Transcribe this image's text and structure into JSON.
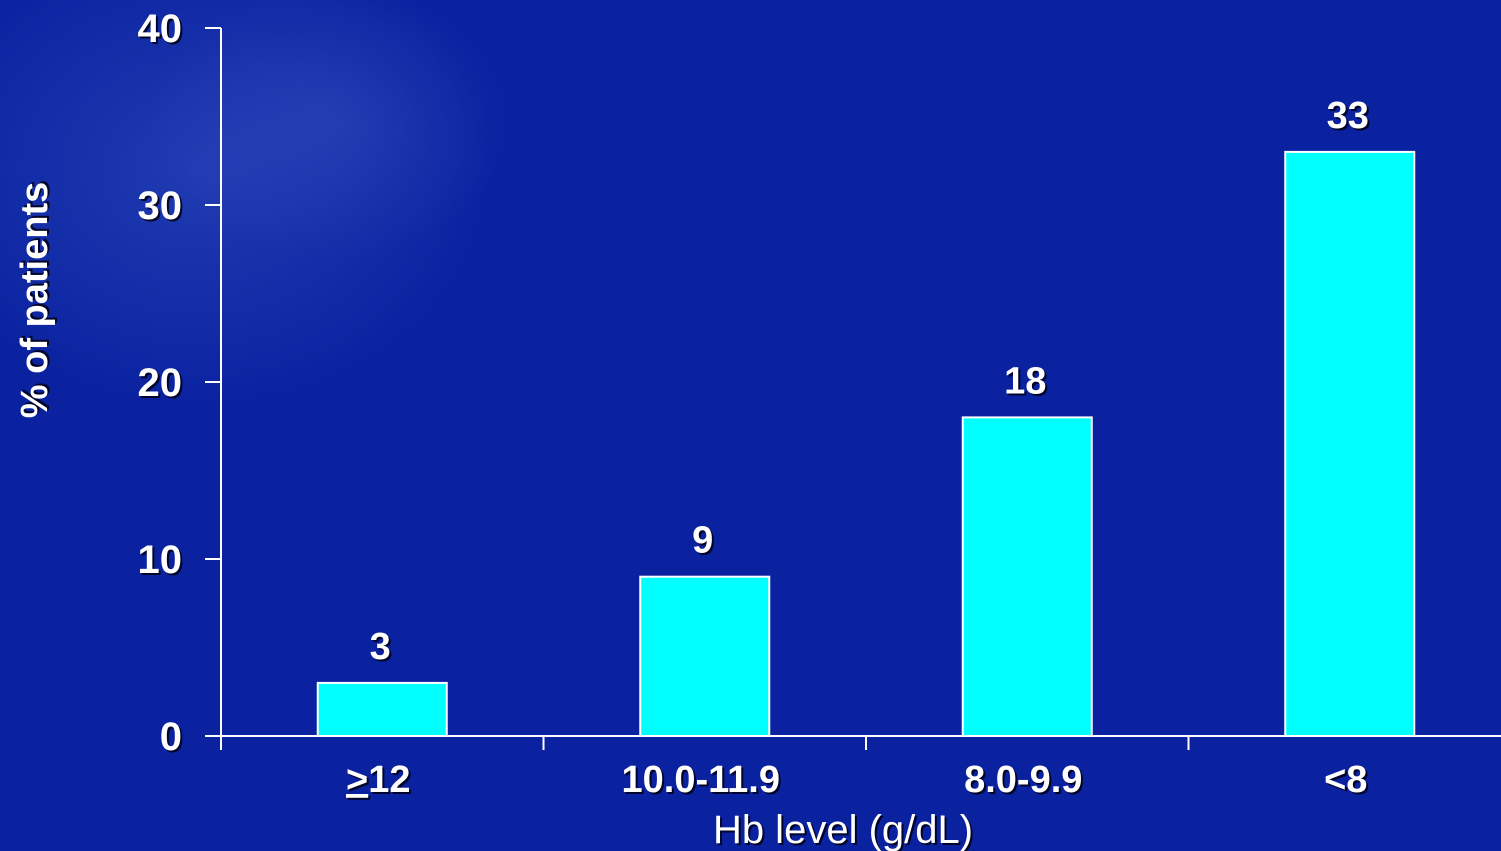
{
  "chart_data": {
    "type": "bar",
    "categories": [
      "≥12",
      "10.0-11.9",
      "8.0-9.9",
      "<8"
    ],
    "values": [
      3,
      9,
      18,
      33
    ],
    "data_labels": [
      "3",
      "9",
      "18",
      "33"
    ],
    "title": "",
    "xlabel": "Hb level (g/dL)",
    "ylabel": "% of patients",
    "ylim": [
      0,
      40
    ],
    "yticks": [
      0,
      10,
      20,
      30,
      40
    ],
    "ytick_labels": [
      "0",
      "10",
      "20",
      "30",
      "40"
    ],
    "grid": false,
    "legend": "none",
    "colors": {
      "bar": "#00ffff",
      "background": "#0a22a0",
      "axis": "#ffffff",
      "text": "#ffffff"
    }
  }
}
